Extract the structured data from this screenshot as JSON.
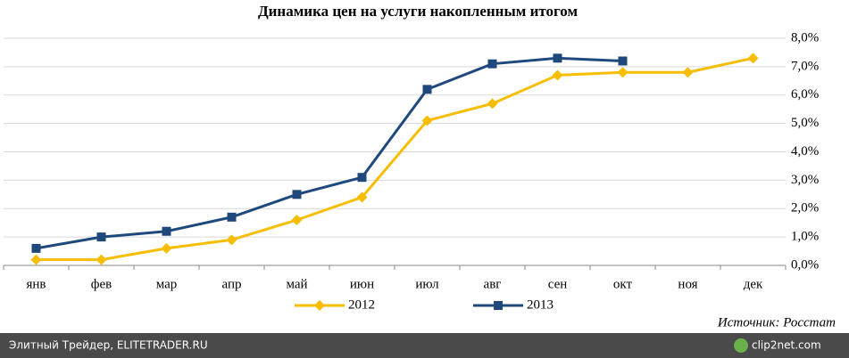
{
  "chart_data": {
    "type": "line",
    "title": "Динамика цен на услуги накопленным итогом",
    "categories": [
      "янв",
      "фев",
      "мар",
      "апр",
      "май",
      "июн",
      "июл",
      "авг",
      "сен",
      "окт",
      "ноя",
      "дек"
    ],
    "series": [
      {
        "name": "2012",
        "color": "#f7bd00",
        "marker": "diamond",
        "values": [
          0.2,
          0.2,
          0.6,
          0.9,
          1.6,
          2.4,
          5.1,
          5.7,
          6.7,
          6.8,
          6.8,
          7.3
        ]
      },
      {
        "name": "2013",
        "color": "#1f497d",
        "marker": "square",
        "values": [
          0.6,
          1.0,
          1.2,
          1.7,
          2.5,
          3.1,
          6.2,
          7.1,
          7.3,
          7.2,
          null,
          null
        ]
      }
    ],
    "ylim": [
      0,
      8
    ],
    "yticks": [
      {
        "value": 0,
        "label": "0,0%"
      },
      {
        "value": 1,
        "label": "1,0%"
      },
      {
        "value": 2,
        "label": "2,0%"
      },
      {
        "value": 3,
        "label": "3,0%"
      },
      {
        "value": 4,
        "label": "4,0%"
      },
      {
        "value": 5,
        "label": "5,0%"
      },
      {
        "value": 6,
        "label": "6,0%"
      },
      {
        "value": 7,
        "label": "7,0%"
      },
      {
        "value": 8,
        "label": "8,0%"
      }
    ],
    "grid": true,
    "legend": "bottom",
    "source": "Источник: Росстат"
  },
  "footer": {
    "text": "Элитный Трейдер, ELITETRADER.RU",
    "logo": "clip2net.com"
  }
}
